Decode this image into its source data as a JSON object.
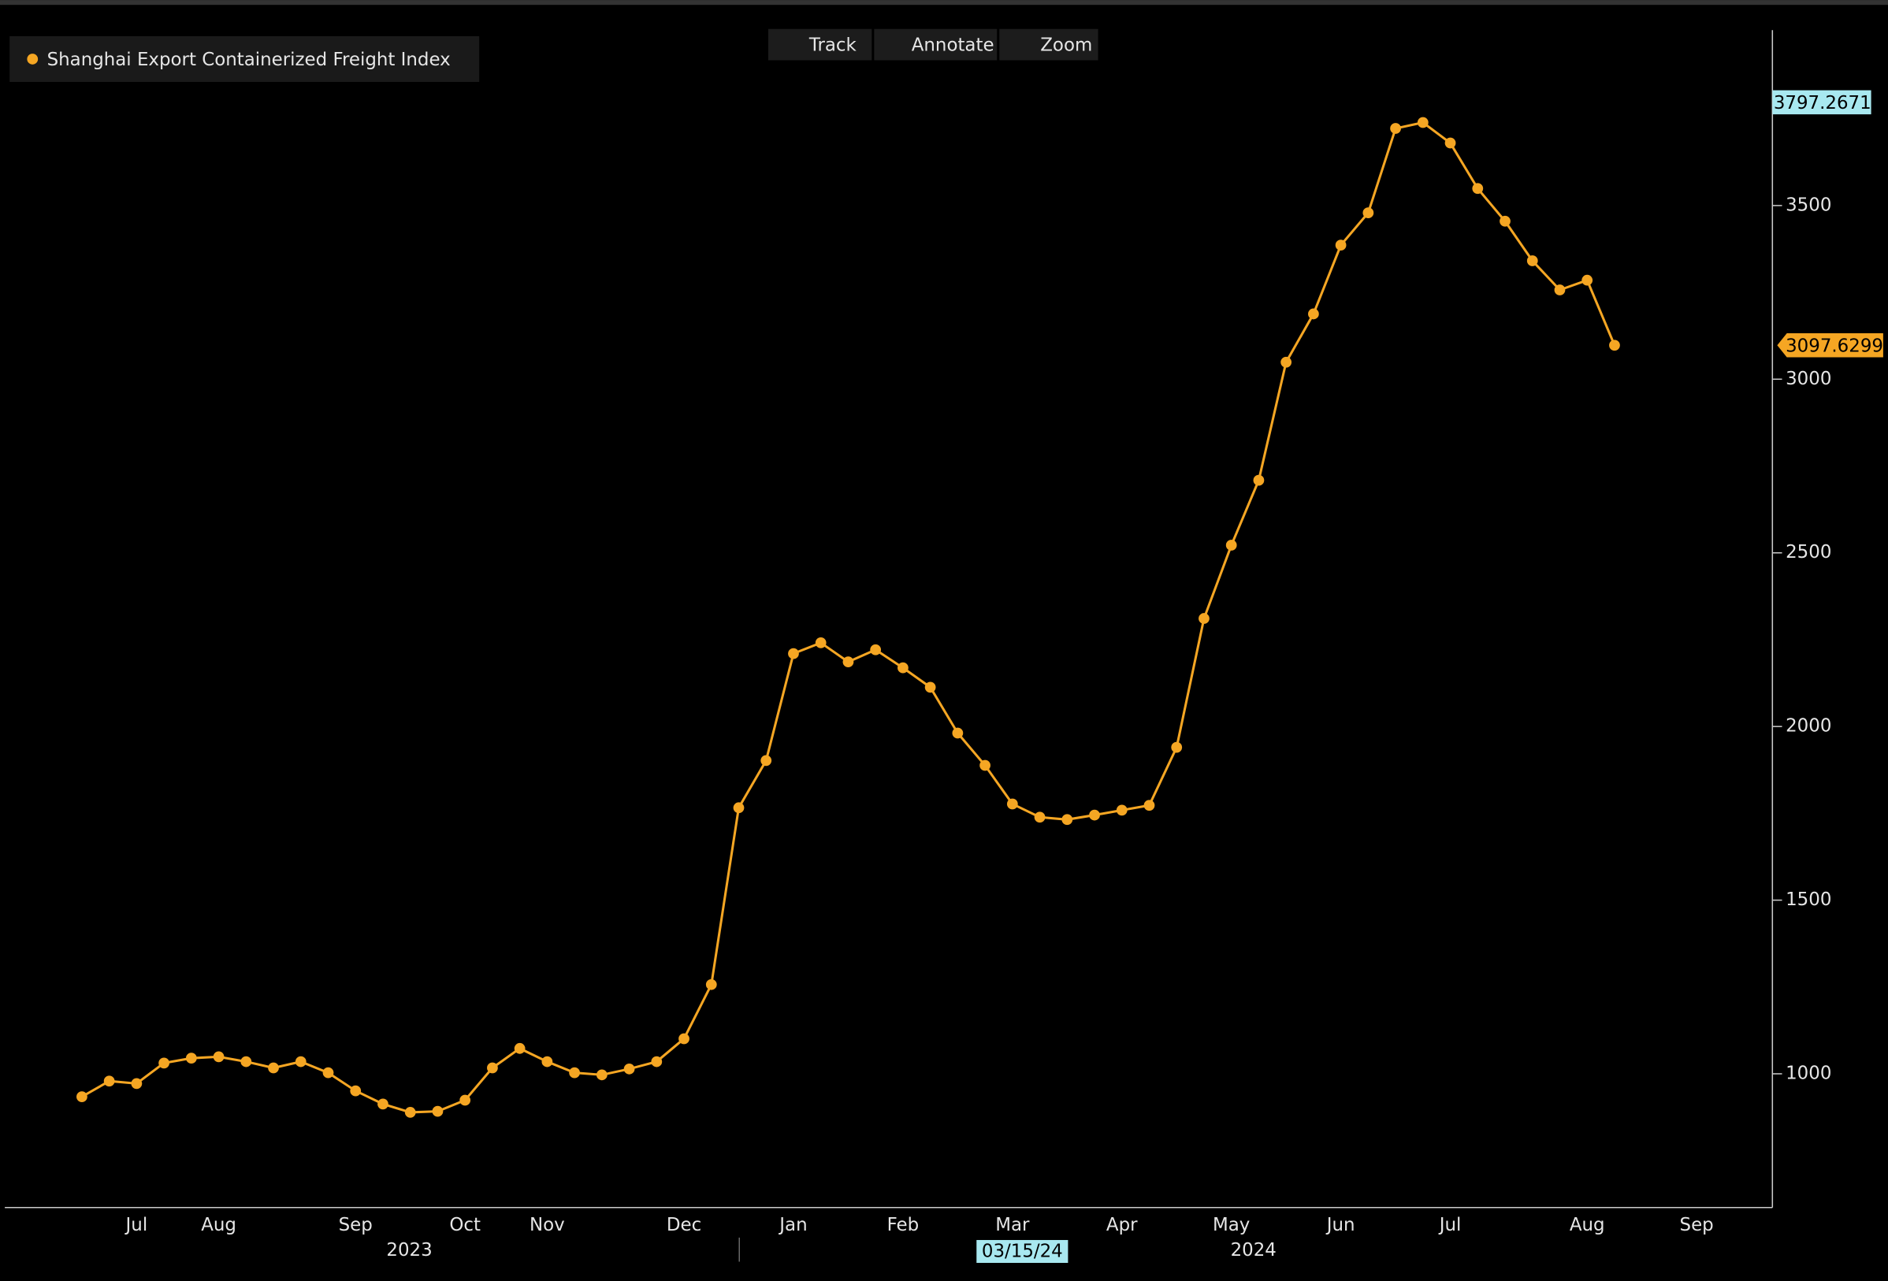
{
  "chart_data": {
    "type": "line",
    "toolbar": [
      "Track",
      "Annotate",
      "Zoom"
    ],
    "categories": [
      null,
      null,
      "Jul",
      null,
      null,
      "Aug",
      null,
      null,
      null,
      null,
      "Sep",
      null,
      null,
      null,
      "Oct",
      null,
      null,
      "Nov",
      null,
      null,
      null,
      null,
      "Dec",
      null,
      null,
      null,
      "Jan",
      null,
      null,
      null,
      "Feb",
      null,
      null,
      null,
      "Mar",
      null,
      null,
      null,
      "Apr",
      null,
      null,
      null,
      "May",
      null,
      null,
      null,
      "Jun",
      null,
      null,
      null,
      "Jul",
      null,
      null,
      null,
      null,
      "Aug",
      null,
      null,
      null,
      "Sep",
      null
    ],
    "series": [
      {
        "name": "Shanghai Export Containerized Freight Index",
        "color": "#f5a623",
        "values": [
          934,
          979,
          972,
          1031,
          1045,
          1049,
          1035,
          1017,
          1035,
          1003,
          951,
          913,
          889,
          892,
          924,
          1017,
          1073,
          1035,
          1003,
          997,
          1014,
          1035,
          1101,
          1257,
          1766,
          1902,
          2210,
          2241,
          2186,
          2221,
          2169,
          2113,
          1981,
          1888,
          1777,
          1739,
          1732,
          1745,
          1759,
          1773,
          1940,
          2311,
          2522,
          2709,
          3049,
          3188,
          3386,
          3479,
          3722,
          3739,
          3680,
          3549,
          3455,
          3341,
          3257,
          3285,
          3097.6299,
          null,
          null,
          null,
          null
        ]
      }
    ],
    "high_value": 3797.2671,
    "year_labels": [
      "2023",
      "2024"
    ],
    "cursor_date": "03/15/24",
    "ylim": [
      615,
      4005
    ],
    "yticks": [
      1000,
      1500,
      2000,
      2500,
      3000,
      3500
    ],
    "grid": false
  }
}
